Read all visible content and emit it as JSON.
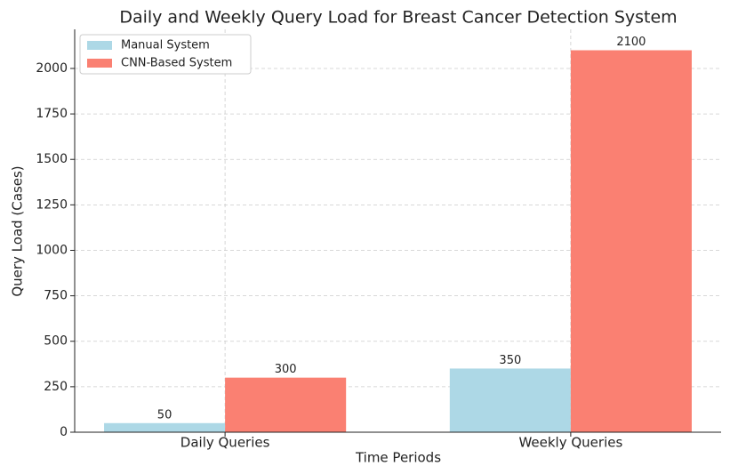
{
  "chart_data": {
    "type": "bar",
    "title": "Daily and Weekly Query Load for Breast Cancer Detection System",
    "x_label": "Time Periods",
    "y_label": "Query Load (Cases)",
    "categories": [
      "Daily Queries",
      "Weekly Queries"
    ],
    "series": [
      {
        "name": "Manual System",
        "color": "#add8e6",
        "values": [
          50,
          350
        ]
      },
      {
        "name": "CNN-Based System",
        "color": "#fa8072",
        "values": [
          300,
          2100
        ]
      }
    ],
    "ylim": [
      0,
      2215
    ],
    "yticks": [
      0,
      250,
      500,
      750,
      1000,
      1250,
      1500,
      1750,
      2000
    ],
    "grid": true,
    "legend": "upper left"
  }
}
